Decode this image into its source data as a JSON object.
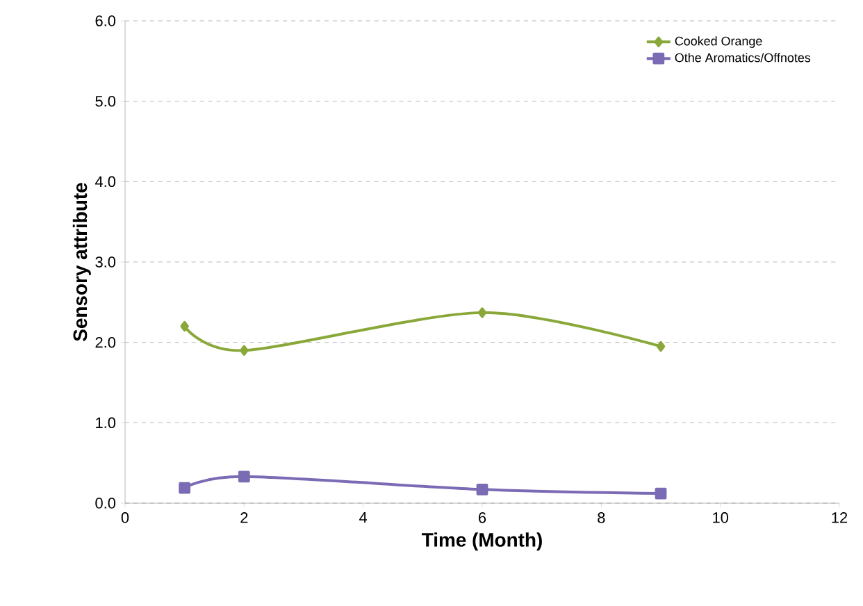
{
  "chart_data": {
    "type": "line",
    "xlabel": "Time (Month)",
    "ylabel": "Sensory attribute",
    "xlim": [
      0,
      12
    ],
    "xticks": [
      0,
      2,
      4,
      6,
      8,
      10,
      12
    ],
    "ylim": [
      0,
      6
    ],
    "yticks": [
      {
        "value": 0,
        "label": "0.0"
      },
      {
        "value": 1,
        "label": "1.0"
      },
      {
        "value": 2,
        "label": "2.0"
      },
      {
        "value": 3,
        "label": "3.0"
      },
      {
        "value": 4,
        "label": "4.0"
      },
      {
        "value": 5,
        "label": "5.0"
      },
      {
        "value": 6,
        "label": "6.0"
      }
    ],
    "grid": "y",
    "legend": "top right",
    "line_style": "solid",
    "series": [
      {
        "name": "Cooked Orange",
        "color": "#8aa83a",
        "marker": "diamond",
        "x": [
          1,
          2,
          6,
          9
        ],
        "values": [
          2.2,
          1.9,
          2.37,
          1.95
        ]
      },
      {
        "name": "Othe Aromatics/Offnotes",
        "color": "#7b6bb5",
        "marker": "square",
        "x": [
          1,
          2,
          6,
          9
        ],
        "values": [
          0.19,
          0.33,
          0.17,
          0.12
        ]
      }
    ]
  }
}
